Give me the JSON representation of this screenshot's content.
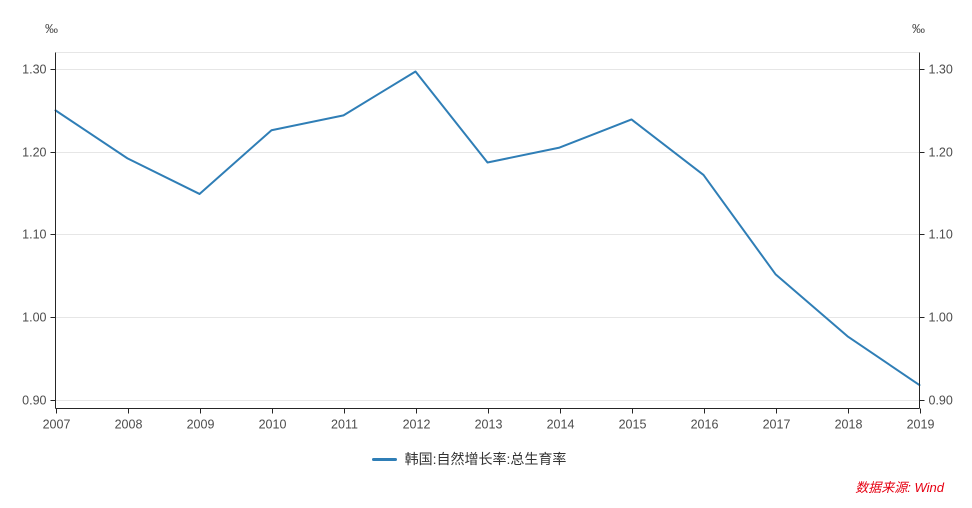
{
  "chart_data": {
    "type": "line",
    "title": "",
    "left_unit": "‰",
    "right_unit": "‰",
    "x": [
      "2007",
      "2008",
      "2009",
      "2010",
      "2011",
      "2012",
      "2013",
      "2014",
      "2015",
      "2016",
      "2017",
      "2018",
      "2019"
    ],
    "series": [
      {
        "name": "韩国:自然增长率:总生育率",
        "color": "#2f7eb6",
        "values": [
          1.25,
          1.192,
          1.149,
          1.226,
          1.244,
          1.297,
          1.187,
          1.205,
          1.239,
          1.172,
          1.052,
          0.977,
          0.918
        ]
      }
    ],
    "y_ticks": [
      0.9,
      1.0,
      1.1,
      1.2,
      1.3
    ],
    "y_tick_labels": [
      "0.90",
      "1.00",
      "1.10",
      "1.20",
      "1.30"
    ],
    "ylim": [
      0.888,
      1.321
    ],
    "grid": "horizontal",
    "legend_position": "bottom",
    "colors": {
      "axis": "#262626",
      "grid": "#e6e6e6",
      "tick_label": "#4d4d4d"
    }
  },
  "legend": {
    "label": "韩国:自然增长率:总生育率"
  },
  "footer": {
    "source_text": "数据来源: Wind",
    "color": "#e60012"
  }
}
